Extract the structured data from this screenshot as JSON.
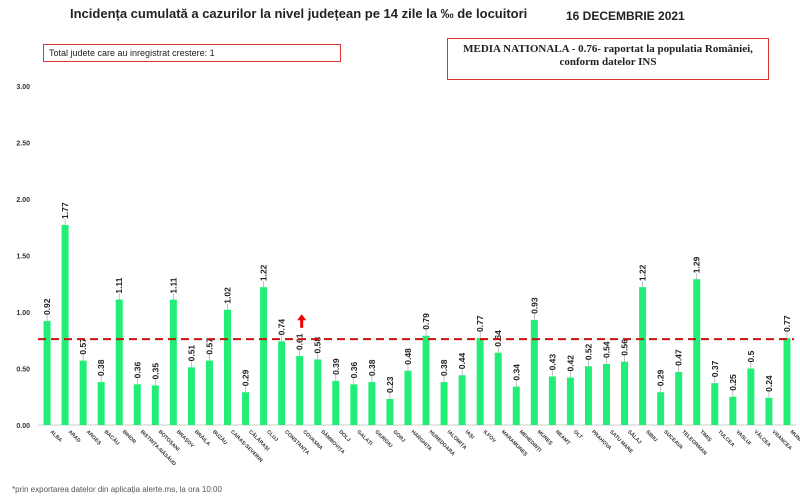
{
  "header": {
    "title": "Incidența cumulată a cazurilor la nivel județean pe 14 zile la ‰ de locuitori",
    "date": "16 DECEMBRIE 2021"
  },
  "notes": {
    "increase_box": "Total judete care au inregistrat crestere: 1",
    "national_average_box": "MEDIA NATIONALA - 0.76-  raportat la populatia României, conform datelor INS",
    "footnote": "*prin exportarea datelor din aplicația alerte.ms, la ora 10:00"
  },
  "colors": {
    "bar": "#22ee77",
    "reference_line": "#cc1111",
    "increase_arrow": "#ee0000"
  },
  "chart_data": {
    "type": "bar",
    "title": "Incidența cumulată a cazurilor la nivel județean pe 14 zile la ‰ de locuitori",
    "categories": [
      "ALBA",
      "ARAD",
      "ARGEȘ",
      "BACĂU",
      "BIHOR",
      "BISTRIȚA-NĂSĂUD",
      "BOTOȘANI",
      "BRAȘOV",
      "BRĂILA",
      "BUZĂU",
      "CARAȘ-SEVERIN",
      "CĂLĂRAȘI",
      "CLUJ",
      "CONSTANȚA",
      "COVASNA",
      "DÂMBOVIȚA",
      "DOLJ",
      "GALAȚI",
      "GIURGIU",
      "GORJ",
      "HARGHITA",
      "HUNEDOARA",
      "IALOMIȚA",
      "IAȘI",
      "ILFOV",
      "MARAMUREȘ",
      "MEHEDINȚI",
      "MUREȘ",
      "NEAMȚ",
      "OLT",
      "PRAHOVA",
      "SATU MARE",
      "SĂLAJ",
      "SIBIU",
      "SUCEAVA",
      "TELEORMAN",
      "TIMIȘ",
      "TULCEA",
      "VASLUI",
      "VÂLCEA",
      "VRANCEA",
      "MUNICIPIUL..."
    ],
    "values": [
      0.92,
      1.77,
      0.57,
      0.38,
      1.11,
      0.36,
      0.35,
      1.11,
      0.51,
      0.57,
      1.02,
      0.29,
      1.22,
      0.74,
      0.61,
      0.58,
      0.39,
      0.36,
      0.38,
      0.23,
      0.48,
      0.79,
      0.38,
      0.44,
      0.77,
      0.64,
      0.34,
      0.93,
      0.43,
      0.42,
      0.52,
      0.54,
      0.56,
      1.22,
      0.29,
      0.47,
      1.29,
      0.37,
      0.25,
      0.5,
      0.24,
      0.77
    ],
    "value_labels": [
      "0.92",
      "1.77",
      "0.57",
      "0.38",
      "1.11",
      "0.36",
      "0.35",
      "1.11",
      "0.51",
      "0.57",
      "1.02",
      "0.29",
      "1.22",
      "0.74",
      "0.61",
      "0.58",
      "0.39",
      "0.36",
      "0.38",
      "0.23",
      "0.48",
      "0.79",
      "0.38",
      "0.44",
      "0.77",
      "0.64",
      "0.34",
      "0.93",
      "0.43",
      "0.42",
      "0.52",
      "0.54",
      "0.56",
      "1.22",
      "0.29",
      "0.47",
      "1.29",
      "0.37",
      "0.25",
      "0.5",
      "0.24",
      "0.77"
    ],
    "reference_line": {
      "value": 0.76,
      "label": "MEDIA NATIONALA"
    },
    "increase_marker_category": "COVASNA",
    "ylim": [
      0,
      3
    ],
    "yticks": [
      "0.00",
      "0.50",
      "1.00",
      "1.50",
      "2.00",
      "2.50",
      "3.00"
    ],
    "xlabel": "",
    "ylabel": "",
    "grid": false,
    "legend": "none"
  }
}
